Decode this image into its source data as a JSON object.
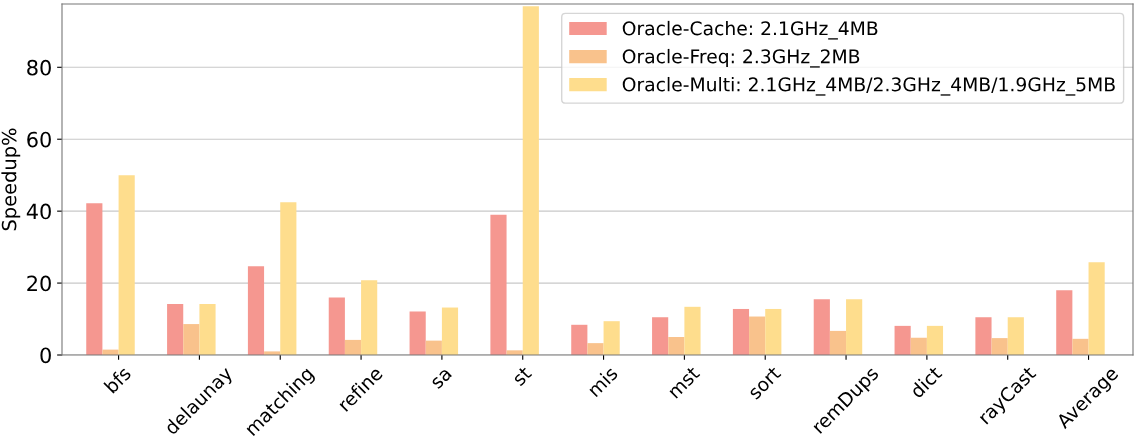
{
  "chart_data": {
    "type": "bar",
    "ylabel": "Speedup%",
    "categories": [
      "bfs",
      "delaunay",
      "matching",
      "refine",
      "sa",
      "st",
      "mis",
      "mst",
      "sort",
      "remDups",
      "dict",
      "rayCast",
      "Average"
    ],
    "series": [
      {
        "name": "Oracle-Cache: 2.1GHz_4MB",
        "color": "#f59790",
        "values": [
          42.2,
          14.2,
          24.7,
          16,
          12.1,
          39,
          8.4,
          10.5,
          12.8,
          15.5,
          8.1,
          10.5,
          18.0
        ]
      },
      {
        "name": "Oracle-Freq: 2.3GHz_2MB",
        "color": "#f9c28c",
        "values": [
          1.5,
          8.6,
          1.0,
          4.2,
          4.0,
          1.3,
          3.3,
          5.0,
          10.7,
          6.7,
          4.8,
          4.7,
          4.5
        ]
      },
      {
        "name": "Oracle-Multi: 2.1GHz_4MB/2.3GHz_4MB/1.9GHz_5MB",
        "color": "#fedd8d",
        "values": [
          50,
          14.2,
          42.5,
          20.8,
          13.2,
          97,
          9.4,
          13.4,
          12.8,
          15.5,
          8.1,
          10.5,
          25.8
        ]
      }
    ],
    "ylim": [
      0,
      97.6
    ],
    "yticks": [
      0,
      20,
      40,
      60,
      80
    ],
    "grid": "y",
    "legend": "top right"
  }
}
